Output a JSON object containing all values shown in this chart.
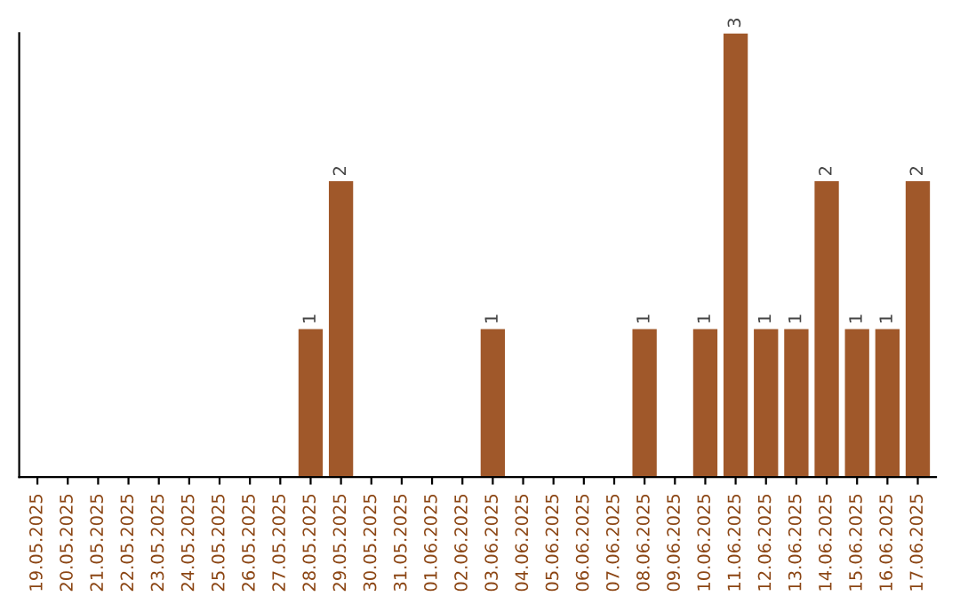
{
  "chart_data": {
    "type": "bar",
    "categories": [
      "19.05.2025",
      "20.05.2025",
      "21.05.2025",
      "22.05.2025",
      "23.05.2025",
      "24.05.2025",
      "25.05.2025",
      "26.05.2025",
      "27.05.2025",
      "28.05.2025",
      "29.05.2025",
      "30.05.2025",
      "31.05.2025",
      "01.06.2025",
      "02.06.2025",
      "03.06.2025",
      "04.06.2025",
      "05.06.2025",
      "06.06.2025",
      "07.06.2025",
      "08.06.2025",
      "09.06.2025",
      "10.06.2025",
      "11.06.2025",
      "12.06.2025",
      "13.06.2025",
      "14.06.2025",
      "15.06.2025",
      "16.06.2025",
      "17.06.2025"
    ],
    "values": [
      0,
      0,
      0,
      0,
      0,
      0,
      0,
      0,
      0,
      1,
      2,
      0,
      0,
      0,
      0,
      1,
      0,
      0,
      0,
      0,
      1,
      0,
      1,
      3,
      1,
      1,
      2,
      1,
      1,
      2
    ],
    "value_labels": [
      null,
      null,
      null,
      null,
      null,
      null,
      null,
      null,
      null,
      "1",
      "2",
      null,
      null,
      null,
      null,
      "1",
      null,
      null,
      null,
      null,
      "1",
      null,
      "1",
      "3",
      "1",
      "1",
      "2",
      "1",
      "1",
      "2"
    ],
    "color": "#a0582a",
    "tick_labels": "x",
    "grid": false,
    "legend": false
  }
}
